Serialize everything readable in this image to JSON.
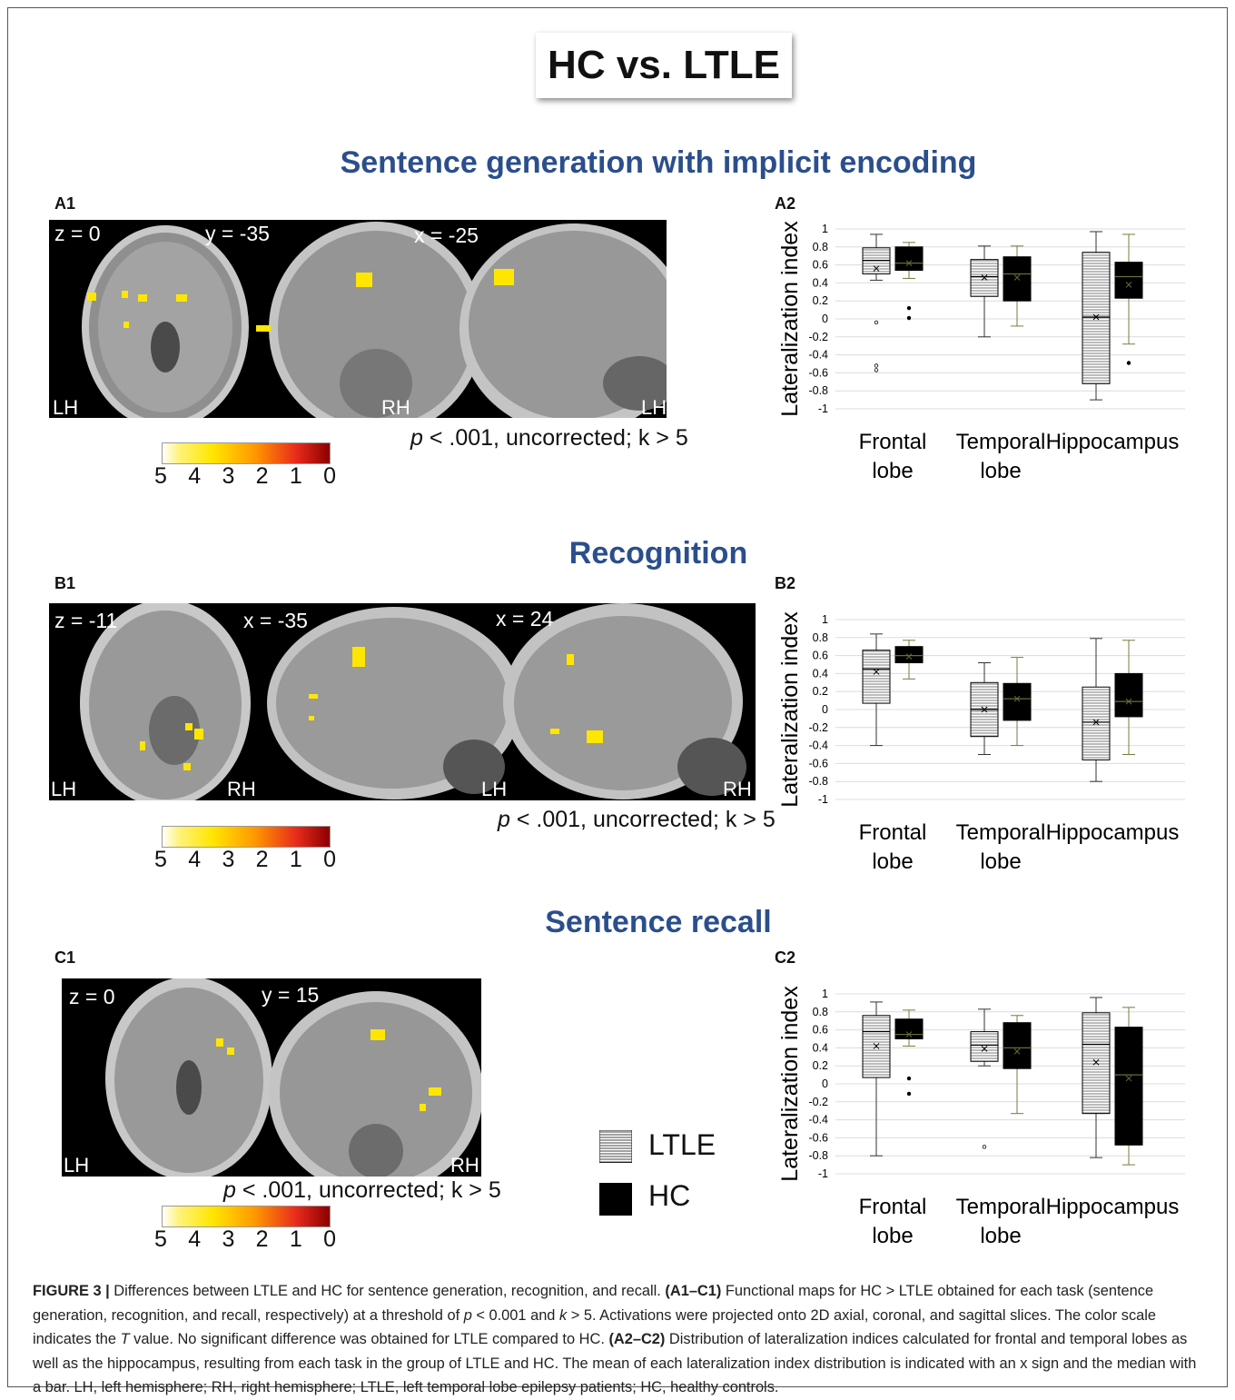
{
  "main_title": "HC vs. LTLE",
  "sections": [
    {
      "title": "Sentence generation with implicit encoding",
      "map_label": "A1",
      "chart_label": "A2",
      "slices": [
        "z = 0",
        "y = -35",
        "x = -25"
      ],
      "hemi_labels": [
        "LH",
        "RH",
        "LH"
      ],
      "threshold_text": "p < .001, uncorrected; k > 5"
    },
    {
      "title": "Recognition",
      "map_label": "B1",
      "chart_label": "B2",
      "slices": [
        "z = -11",
        "x = -35",
        "x = 24"
      ],
      "hemi_labels": [
        "LH",
        "RH",
        "LH",
        "RH"
      ],
      "threshold_text": "p < .001, uncorrected; k > 5"
    },
    {
      "title": "Sentence recall",
      "map_label": "C1",
      "chart_label": "C2",
      "slices": [
        "z = 0",
        "y = 15"
      ],
      "hemi_labels": [
        "LH",
        "RH"
      ],
      "threshold_text": "p < .001, uncorrected; k > 5"
    }
  ],
  "color_scale": {
    "ticks": [
      "5",
      "4",
      "3",
      "2",
      "1",
      "0"
    ]
  },
  "legend": {
    "items": [
      {
        "label": "LTLE",
        "pattern": "horizontal-lines"
      },
      {
        "label": "HC",
        "pattern": "solid-black"
      }
    ]
  },
  "caption": {
    "figure_label": "FIGURE 3 |",
    "text_1": " Differences between LTLE and HC for sentence generation, recognition, and recall. ",
    "bold_1": "(A1–C1)",
    "text_2": " Functional maps for HC > LTLE obtained for each task (sentence generation, recognition, and recall, respectively) at a threshold of ",
    "p_sym": "p",
    "text_3": " < 0.001 and ",
    "k_sym": "k",
    "text_4": " > 5. Activations were projected onto 2D axial, coronal, and sagittal slices. The color scale indicates the ",
    "t_sym": "T",
    "text_5": " value. No significant difference was obtained for LTLE compared to HC. ",
    "bold_2": "(A2–C2)",
    "text_6": " Distribution of lateralization indices calculated for frontal and temporal lobes as well as the hippocampus, resulting from each task in the group of LTLE and HC. The mean of each lateralization index distribution is indicated with an x sign and the median with a bar. LH, left hemisphere; RH, right hemisphere; LTLE, left temporal lobe epilepsy patients; HC, healthy controls."
  },
  "chart_data": [
    {
      "type": "boxplot",
      "panel": "A2",
      "ylabel": "Lateralization index",
      "ylim": [
        -1,
        1
      ],
      "yticks": [
        "1",
        "0.8",
        "0.6",
        "0.4",
        "0.2",
        "0",
        "-0.2",
        "-0.4",
        "-0.6",
        "-0.8",
        "-1"
      ],
      "categories": [
        "Frontal lobe",
        "Temporal lobe",
        "Hippocampus"
      ],
      "category_lines": [
        [
          "Frontal",
          "lobe"
        ],
        [
          "Temporal",
          "lobe"
        ],
        [
          "Hippocampus"
        ]
      ],
      "series": [
        {
          "name": "LTLE",
          "boxes": [
            {
              "min": 0.43,
              "q1": 0.5,
              "median": 0.65,
              "q3": 0.79,
              "max": 0.94,
              "mean": 0.56,
              "outliers": [
                -0.04,
                -0.52,
                -0.57
              ]
            },
            {
              "min": -0.2,
              "q1": 0.25,
              "median": 0.47,
              "q3": 0.66,
              "max": 0.81,
              "mean": 0.46,
              "outliers": []
            },
            {
              "min": -0.9,
              "q1": -0.72,
              "median": 0.02,
              "q3": 0.74,
              "max": 0.97,
              "mean": 0.02,
              "outliers": []
            }
          ]
        },
        {
          "name": "HC",
          "boxes": [
            {
              "min": 0.45,
              "q1": 0.54,
              "median": 0.62,
              "q3": 0.8,
              "max": 0.85,
              "mean": 0.62,
              "outliers": [
                0.12,
                0.01
              ]
            },
            {
              "min": -0.08,
              "q1": 0.2,
              "median": 0.5,
              "q3": 0.69,
              "max": 0.81,
              "mean": 0.46,
              "outliers": []
            },
            {
              "min": -0.28,
              "q1": 0.23,
              "median": 0.47,
              "q3": 0.63,
              "max": 0.94,
              "mean": 0.38,
              "outliers": [
                -0.49
              ]
            }
          ]
        }
      ]
    },
    {
      "type": "boxplot",
      "panel": "B2",
      "ylabel": "Lateralization index",
      "ylim": [
        -1,
        1
      ],
      "yticks": [
        "1",
        "0.8",
        "0.6",
        "0.4",
        "0.2",
        "0",
        "-0.2",
        "-0.4",
        "-0.6",
        "-0.8",
        "-1"
      ],
      "categories": [
        "Frontal lobe",
        "Temporal lobe",
        "Hippocampus"
      ],
      "category_lines": [
        [
          "Frontal",
          "lobe"
        ],
        [
          "Temporal",
          "lobe"
        ],
        [
          "Hippocampus"
        ]
      ],
      "series": [
        {
          "name": "LTLE",
          "boxes": [
            {
              "min": -0.4,
              "q1": 0.07,
              "median": 0.45,
              "q3": 0.66,
              "max": 0.84,
              "mean": 0.42,
              "outliers": []
            },
            {
              "min": -0.5,
              "q1": -0.3,
              "median": 0.0,
              "q3": 0.3,
              "max": 0.52,
              "mean": 0.0,
              "outliers": []
            },
            {
              "min": -0.8,
              "q1": -0.56,
              "median": -0.14,
              "q3": 0.25,
              "max": 0.79,
              "mean": -0.14,
              "outliers": []
            }
          ]
        },
        {
          "name": "HC",
          "boxes": [
            {
              "min": 0.34,
              "q1": 0.52,
              "median": 0.6,
              "q3": 0.7,
              "max": 0.77,
              "mean": 0.59,
              "outliers": []
            },
            {
              "min": -0.4,
              "q1": -0.12,
              "median": 0.12,
              "q3": 0.29,
              "max": 0.58,
              "mean": 0.12,
              "outliers": []
            },
            {
              "min": -0.5,
              "q1": -0.08,
              "median": 0.09,
              "q3": 0.4,
              "max": 0.77,
              "mean": 0.09,
              "outliers": []
            }
          ]
        }
      ]
    },
    {
      "type": "boxplot",
      "panel": "C2",
      "ylabel": "Lateralization index",
      "ylim": [
        -1,
        1
      ],
      "yticks": [
        "1",
        "0.8",
        "0.6",
        "0.4",
        "0.2",
        "0",
        "-0.2",
        "-0.4",
        "-0.6",
        "-0.8",
        "-1"
      ],
      "categories": [
        "Frontal lobe",
        "Temporal lobe",
        "Hippocampus"
      ],
      "category_lines": [
        [
          "Frontal",
          "lobe"
        ],
        [
          "Temporal",
          "lobe"
        ],
        [
          "Hippocampus"
        ]
      ],
      "series": [
        {
          "name": "LTLE",
          "boxes": [
            {
              "min": -0.8,
              "q1": 0.07,
              "median": 0.58,
              "q3": 0.76,
              "max": 0.91,
              "mean": 0.42,
              "outliers": []
            },
            {
              "min": 0.2,
              "q1": 0.25,
              "median": 0.43,
              "q3": 0.58,
              "max": 0.83,
              "mean": 0.39,
              "outliers": [
                -0.7
              ]
            },
            {
              "min": -0.82,
              "q1": -0.33,
              "median": 0.44,
              "q3": 0.79,
              "max": 0.96,
              "mean": 0.24,
              "outliers": []
            }
          ]
        },
        {
          "name": "HC",
          "boxes": [
            {
              "min": 0.42,
              "q1": 0.5,
              "median": 0.55,
              "q3": 0.72,
              "max": 0.82,
              "mean": 0.55,
              "outliers": [
                0.06,
                -0.11
              ]
            },
            {
              "min": -0.33,
              "q1": 0.17,
              "median": 0.4,
              "q3": 0.68,
              "max": 0.76,
              "mean": 0.36,
              "outliers": []
            },
            {
              "min": -0.9,
              "q1": -0.68,
              "median": 0.1,
              "q3": 0.63,
              "max": 0.85,
              "mean": 0.06,
              "outliers": []
            }
          ]
        }
      ]
    }
  ]
}
